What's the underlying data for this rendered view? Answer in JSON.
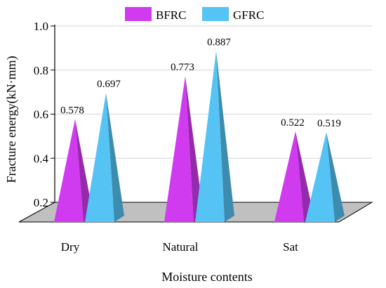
{
  "chart_data": {
    "type": "bar",
    "style": "3d-pyramid",
    "categories": [
      "Dry",
      "Natural",
      "Sat"
    ],
    "series": [
      {
        "name": "BFRC",
        "values": [
          0.578,
          0.773,
          0.522
        ],
        "color": "#d13bf0"
      },
      {
        "name": "GFRC",
        "values": [
          0.697,
          0.887,
          0.519
        ],
        "color": "#55c3f4"
      }
    ],
    "value_labels": [
      [
        "0.578",
        "0.773",
        "0.522"
      ],
      [
        "0.697",
        "0.887",
        "0.519"
      ]
    ],
    "xlabel": "Moisture contents",
    "ylabel": "Fracture energy(kN·mm)",
    "ylim": [
      0.2,
      1.0
    ],
    "yticks": [
      "0.2",
      "0.4",
      "0.6",
      "0.8",
      "1.0"
    ],
    "legend_position": "top",
    "grid": true,
    "floor_color": "#c0c0c0"
  }
}
